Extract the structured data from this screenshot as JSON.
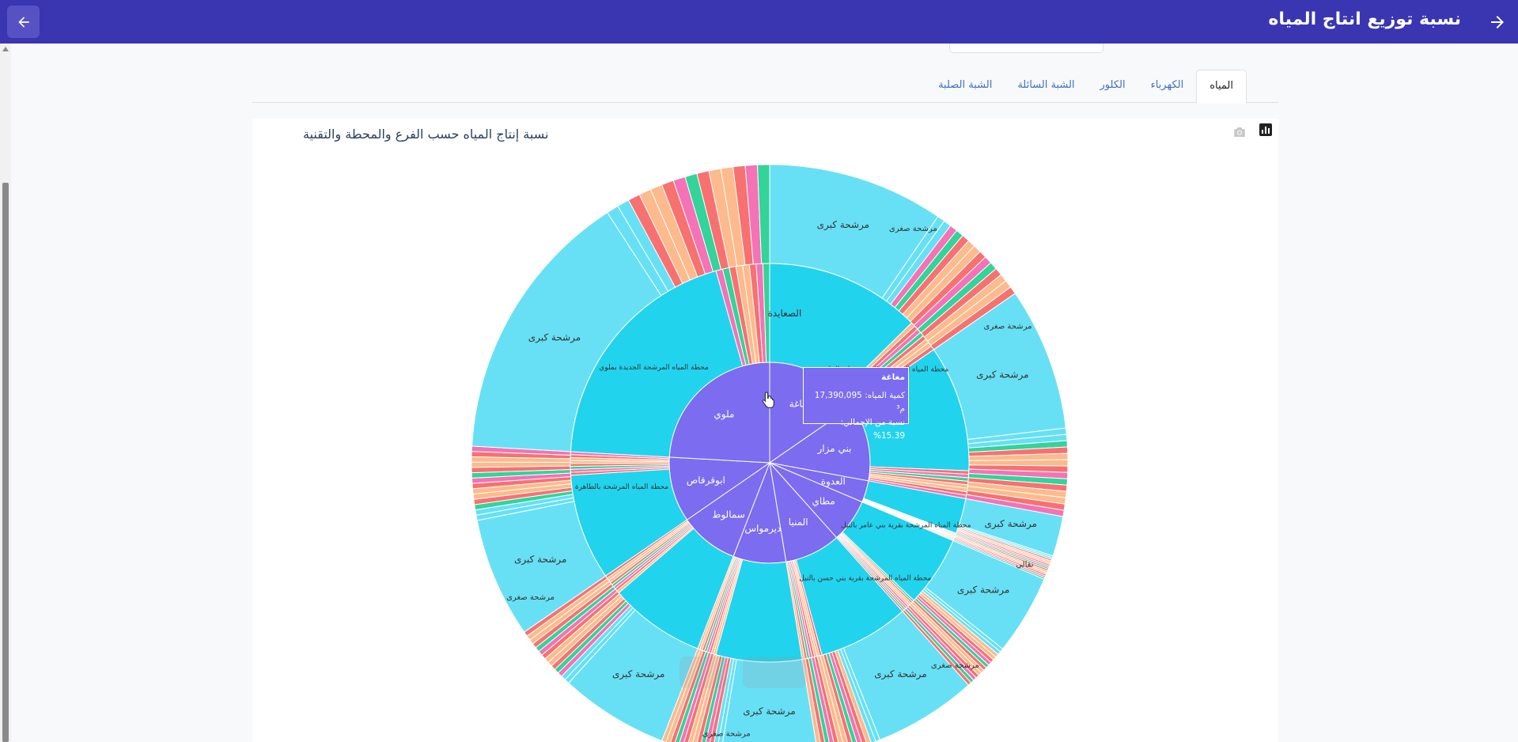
{
  "header": {
    "title": "نسبة توزيع انتاج المياه",
    "back_icon": "arrow-left-icon",
    "forward_icon": "arrow-right-icon",
    "bg_color": "#3a35b0"
  },
  "tabs": [
    {
      "label": "المياه",
      "active": true
    },
    {
      "label": "الكهرباء",
      "active": false
    },
    {
      "label": "الكلور",
      "active": false
    },
    {
      "label": "الشبة السائلة",
      "active": false
    },
    {
      "label": "الشبة الصلبة",
      "active": false
    }
  ],
  "chart": {
    "title": "نسبة إنتاج المياه حسب الفرع والمحطة والتقنية",
    "tooltip": {
      "name": "مغاغة",
      "quantity_line": "كمية المياه: 17,390,095 م³",
      "percent_line": "نسبة من الإجمالي: 15.39%"
    }
  },
  "chart_data": {
    "type": "sunburst",
    "title": "نسبة إنتاج المياه حسب الفرع والمحطة والتقنية",
    "branches": [
      {
        "name": "مغاغة",
        "percent": 15.39,
        "quantity": 17390095
      },
      {
        "name": "بني مزار",
        "percent": 12.5
      },
      {
        "name": "العدوة",
        "percent": 3.5
      },
      {
        "name": "مطاي",
        "percent": 7.0
      },
      {
        "name": "المنيا",
        "percent": 9.0
      },
      {
        "name": "ديرمواس",
        "percent": 8.5
      },
      {
        "name": "سمالوط",
        "percent": 9.5
      },
      {
        "name": "ابوقرقاص",
        "percent": 10.5
      },
      {
        "name": "ملوي",
        "percent": 24.11
      }
    ],
    "station_labels": [
      {
        "text": "الصعايدة",
        "branch": "مغاغة"
      },
      {
        "text": "محطة المياه المرشحة بالجزيرة على النيل",
        "branch": "بني مزار"
      },
      {
        "text": "محطة المياه المرشحة بقرية بني عامر بالنيل",
        "branch": "مطاي"
      },
      {
        "text": "محطة المياه المرشحة بقرية بني حسن بالنيل",
        "branch": "المنيا"
      },
      {
        "text": "محطة المياه المرشحة بالطاهرة",
        "branch": "ابوقرقاص"
      },
      {
        "text": "محطة المياه المرشحة الجديدة بملوي",
        "branch": "ملوي"
      }
    ],
    "technology_labels": [
      "مرشحة كبرى",
      "مرشحة صغرى",
      "نقالي"
    ],
    "colors": {
      "root": "#7b6cf0",
      "station": "#22d3ee",
      "tech_large": "#67e0f5",
      "tech_small_orange": "#fdba8c",
      "tech_small_red": "#f87171",
      "tech_pink": "#f472b6",
      "tech_green": "#34d399"
    }
  }
}
